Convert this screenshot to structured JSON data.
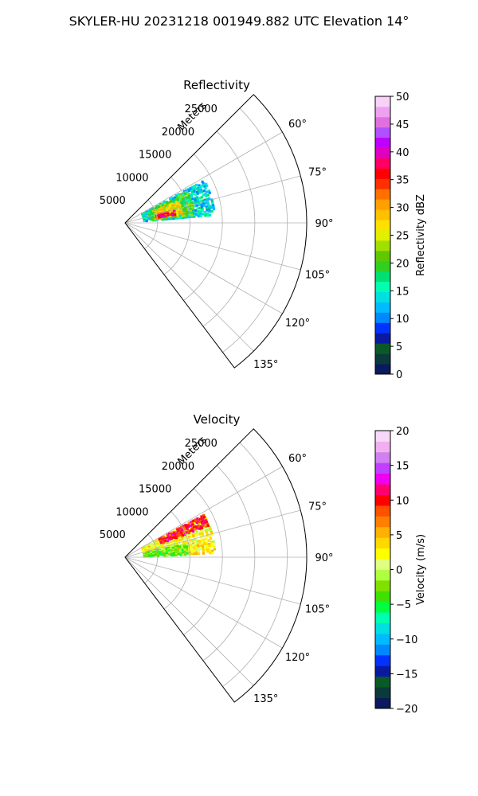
{
  "figure": {
    "title": "SKYLER-HU  20231218  001949.882 UTC Elevation 14°"
  },
  "chart_data": [
    {
      "type": "polar_sector",
      "title": "Reflectivity",
      "radial_axis_label": "Meters",
      "radial_ticks": [
        5000,
        10000,
        15000,
        20000,
        25000
      ],
      "radial_tick_labels": [
        "5000",
        "10000",
        "15000",
        "20000",
        "25000"
      ],
      "angular_ticks": [
        60,
        75,
        90,
        105,
        120,
        135
      ],
      "angular_tick_labels": [
        "60°",
        "75°",
        "90°",
        "105°",
        "120°",
        "135°"
      ],
      "azimuth_range": [
        45,
        143
      ],
      "range_limit": 28000,
      "colorbar": {
        "label": "Reflectivity dBZ",
        "range": [
          0,
          50
        ],
        "ticks": [
          0,
          5,
          10,
          15,
          20,
          25,
          30,
          35,
          40,
          45,
          50
        ],
        "tick_labels": [
          "0",
          "5",
          "10",
          "15",
          "20",
          "25",
          "30",
          "35",
          "40",
          "45",
          "50"
        ],
        "colors": [
          "#0a1a5c",
          "#0a3a3a",
          "#0a5a28",
          "#0a1aa0",
          "#0033ff",
          "#0088ff",
          "#00bbff",
          "#00e0e0",
          "#00ffb0",
          "#00e070",
          "#30d020",
          "#60c800",
          "#a0e000",
          "#e0f000",
          "#ffe000",
          "#ffc000",
          "#ffa000",
          "#ff7000",
          "#ff3000",
          "#ff0000",
          "#ff0060",
          "#e000c0",
          "#c000ff",
          "#b050ff",
          "#e070e0",
          "#f0a0f0",
          "#f8d0f8"
        ]
      },
      "echo_regions": [
        {
          "azimuth_range": [
            62,
            86
          ],
          "range_min": 3000,
          "range_max": 14000,
          "dbz": 14
        },
        {
          "azimuth_range": [
            64,
            84
          ],
          "range_min": 4000,
          "range_max": 11000,
          "dbz": 20
        },
        {
          "azimuth_range": [
            68,
            82
          ],
          "range_min": 5000,
          "range_max": 9000,
          "dbz": 27
        },
        {
          "azimuth_range": [
            76,
            82
          ],
          "range_min": 5000,
          "range_max": 8000,
          "dbz": 36
        }
      ]
    },
    {
      "type": "polar_sector",
      "title": "Velocity",
      "radial_axis_label": "Meters",
      "radial_ticks": [
        5000,
        10000,
        15000,
        20000,
        25000
      ],
      "radial_tick_labels": [
        "5000",
        "10000",
        "15000",
        "20000",
        "25000"
      ],
      "angular_ticks": [
        60,
        75,
        90,
        105,
        120,
        135
      ],
      "angular_tick_labels": [
        "60°",
        "75°",
        "90°",
        "105°",
        "120°",
        "135°"
      ],
      "azimuth_range": [
        45,
        143
      ],
      "range_limit": 28000,
      "colorbar": {
        "label": "Velocity (m/s)",
        "range": [
          -20,
          20
        ],
        "ticks": [
          -20,
          -15,
          -10,
          -5,
          0,
          5,
          10,
          15,
          20
        ],
        "tick_labels": [
          "−20",
          "−15",
          "−10",
          "−5",
          "0",
          "5",
          "10",
          "15",
          "20"
        ],
        "colors": [
          "#0a1a5c",
          "#0a3a3a",
          "#0a5a28",
          "#0a1aa0",
          "#0033ff",
          "#0088ff",
          "#00bbff",
          "#00e0e0",
          "#00ffb0",
          "#00ff40",
          "#40e000",
          "#80e000",
          "#b0ff40",
          "#e0ff80",
          "#ffff00",
          "#ffd800",
          "#ffb000",
          "#ff8000",
          "#ff5000",
          "#ff0000",
          "#ff0070",
          "#f000f0",
          "#c040ff",
          "#d080f0",
          "#f0b0f0",
          "#f8d8f8"
        ]
      },
      "echo_regions": [
        {
          "azimuth_range": [
            62,
            86
          ],
          "range_min": 3000,
          "range_max": 14000,
          "ms": 2
        },
        {
          "azimuth_range": [
            62,
            70
          ],
          "range_min": 6000,
          "range_max": 14000,
          "ms": 10
        },
        {
          "azimuth_range": [
            78,
            88
          ],
          "range_min": 3000,
          "range_max": 10000,
          "ms": -3
        },
        {
          "azimuth_range": [
            80,
            88
          ],
          "range_min": 10000,
          "range_max": 14000,
          "ms": 3
        }
      ]
    }
  ]
}
